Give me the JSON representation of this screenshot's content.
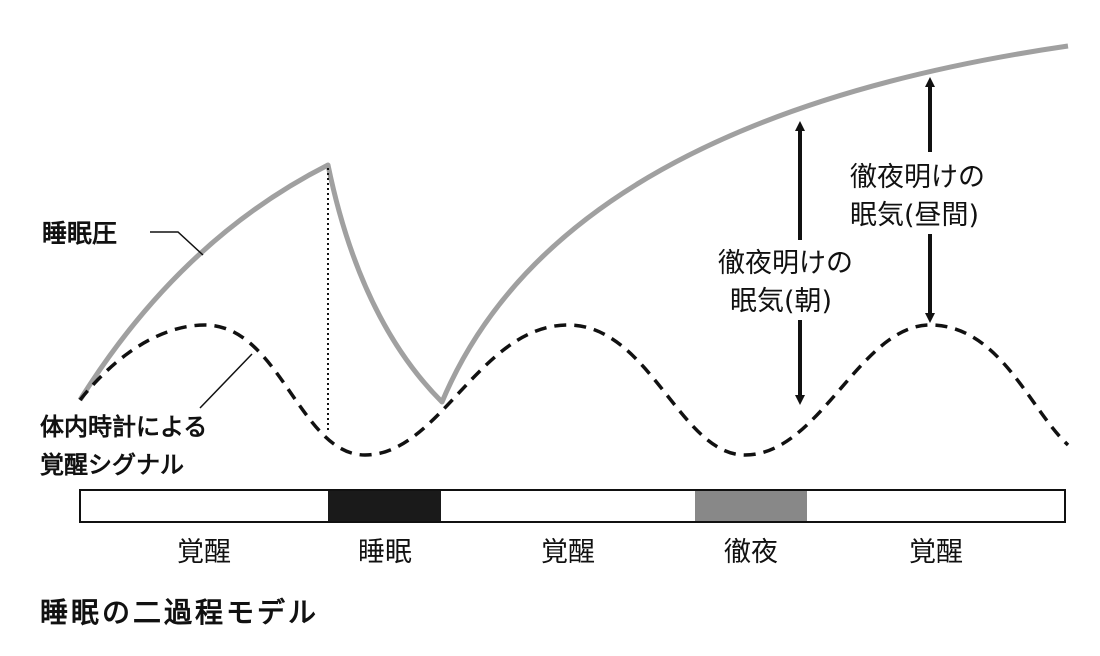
{
  "labels": {
    "sleep_pressure": "睡眠圧",
    "circadian_line1": "体内時計による",
    "circadian_line2": "覚醒シグナル",
    "allnight_morning_line1": "徹夜明けの",
    "allnight_morning_line2": "眠気(朝)",
    "allnight_day_line1": "徹夜明けの",
    "allnight_day_line2": "眠気(昼間)",
    "caption": "睡眠の二過程モデル"
  },
  "timeline": [
    {
      "state": "覚醒"
    },
    {
      "state": "睡眠"
    },
    {
      "state": "覚醒"
    },
    {
      "state": "徹夜"
    },
    {
      "state": "覚醒"
    }
  ],
  "colors": {
    "sleep_pressure_curve": "#a0a0a0",
    "circadian_curve": "#111111",
    "sleep_band": "#1a1a1a",
    "allnight_band": "#888888",
    "awake_band": "#ffffff"
  }
}
